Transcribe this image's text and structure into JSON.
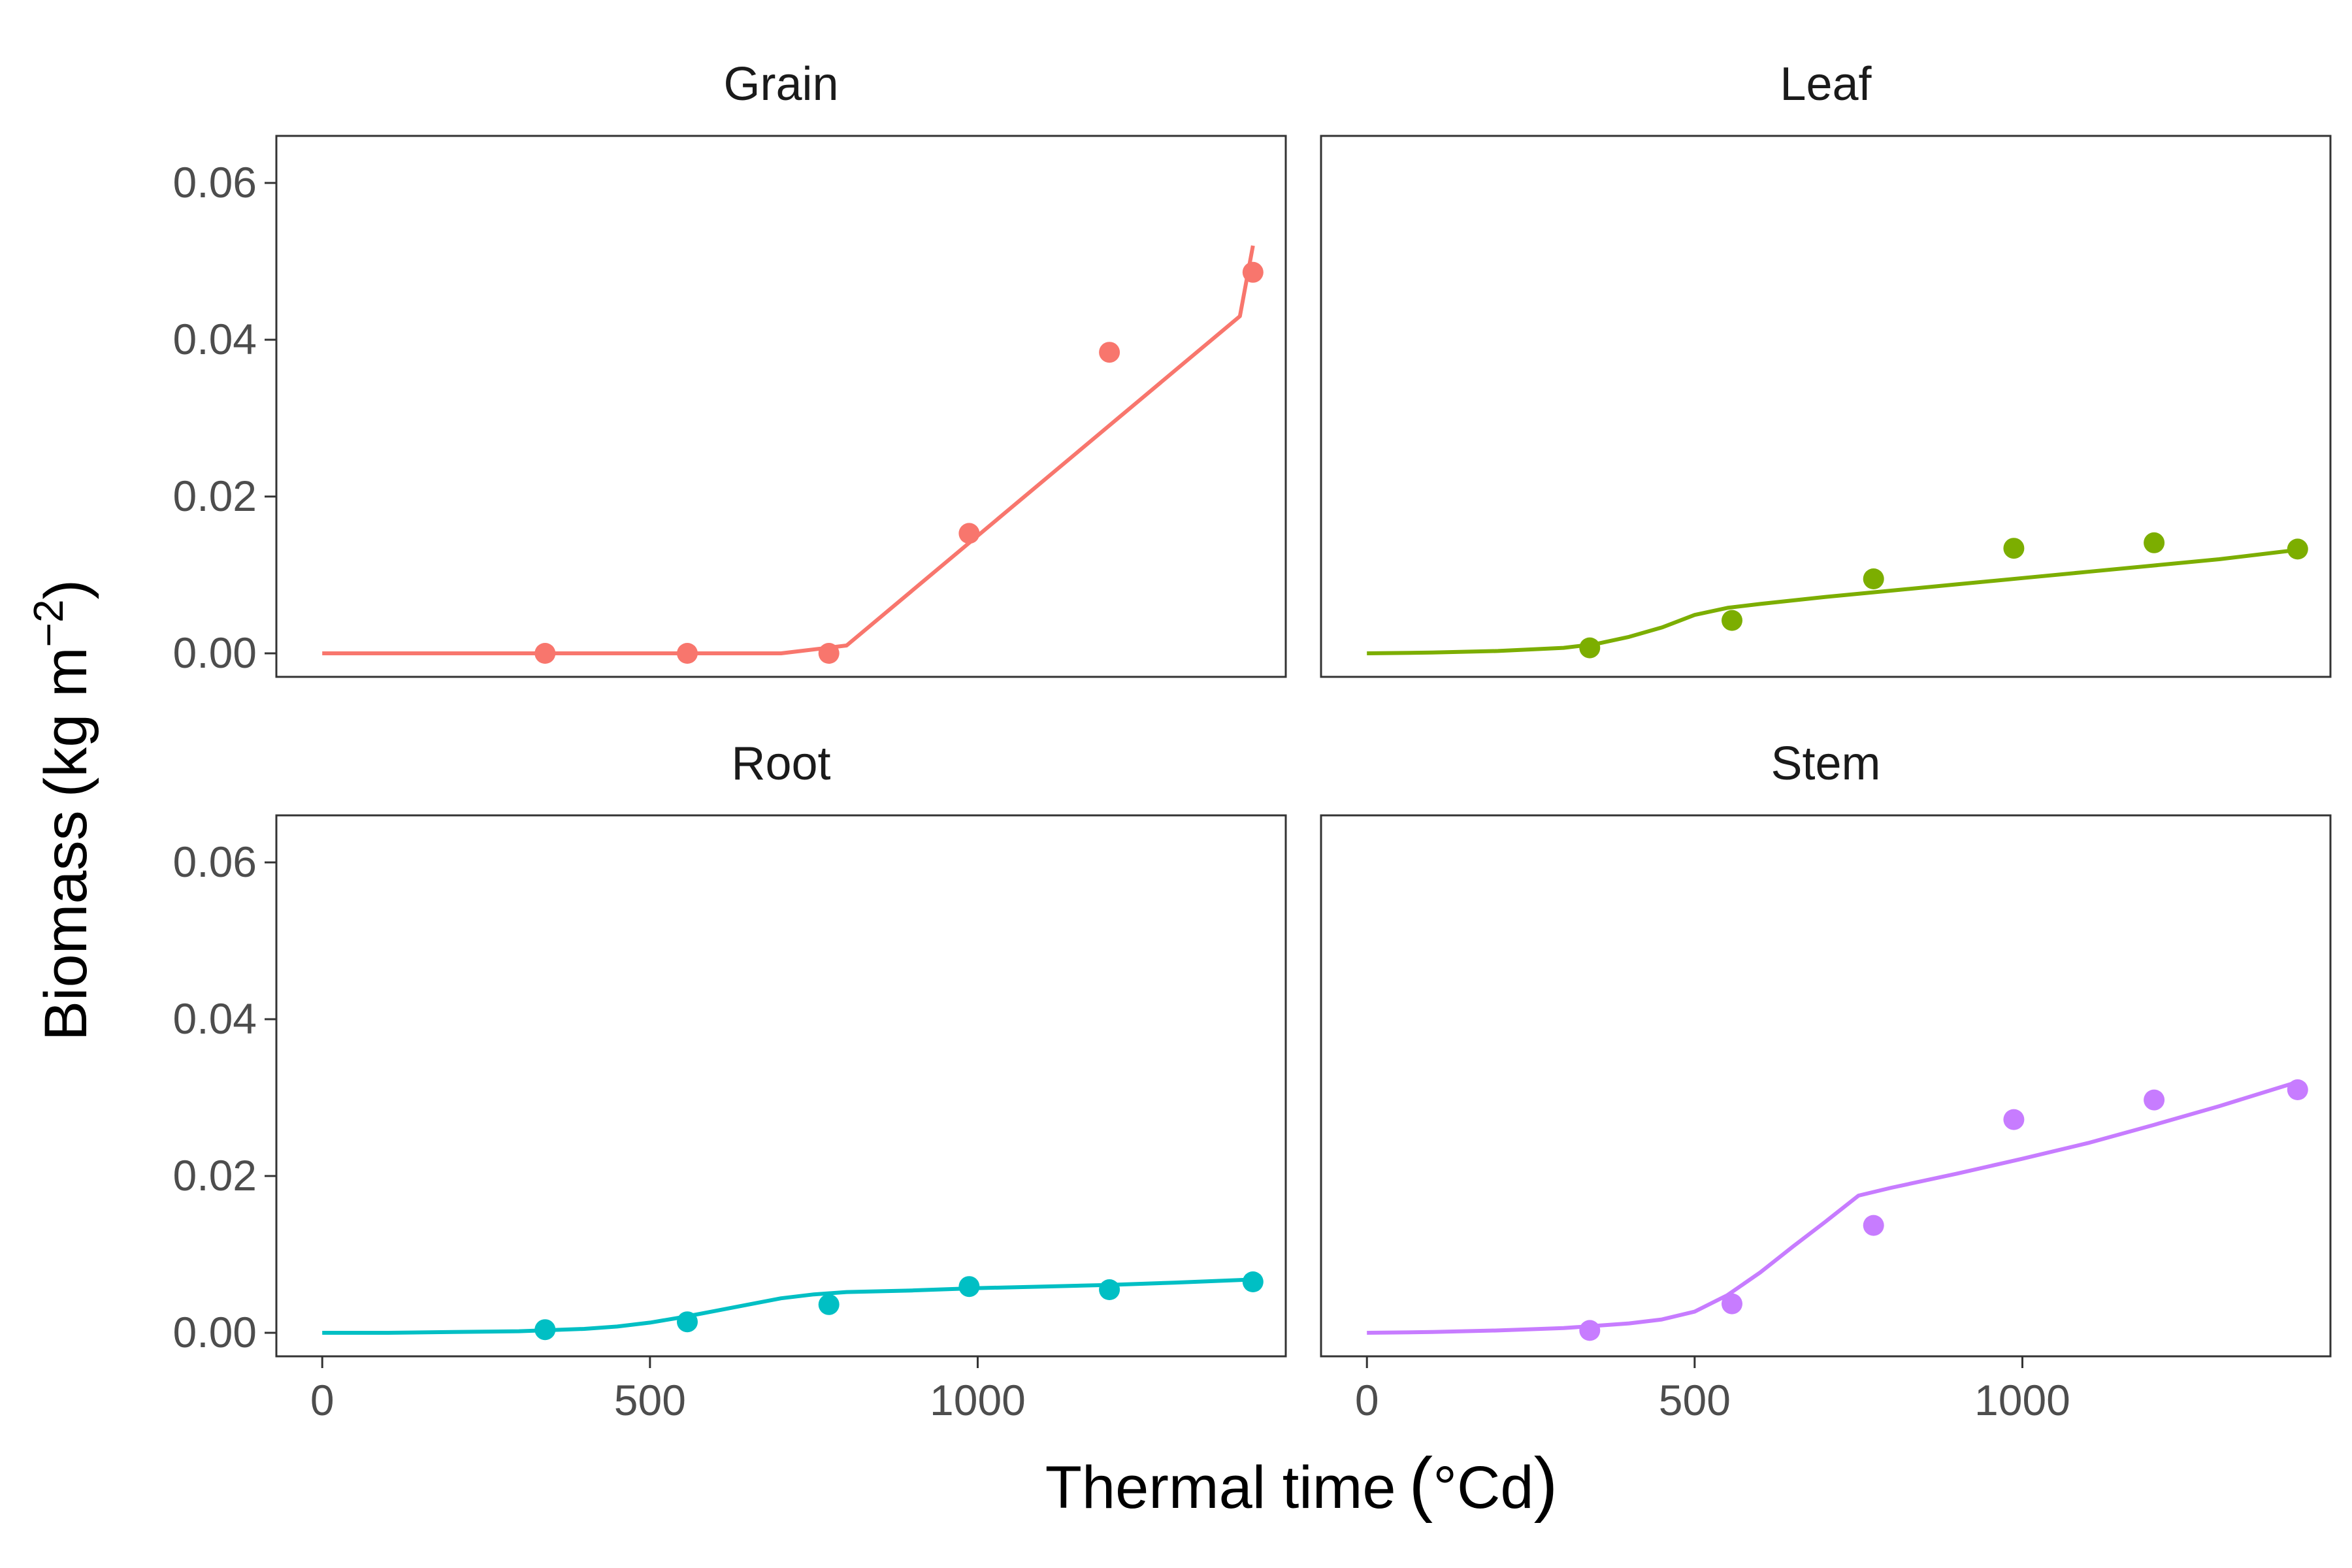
{
  "chart_data": {
    "type": "line",
    "layout": "facet-grid-2x2",
    "xlabel": "Thermal time",
    "xlabel_unit": "°Cd",
    "ylabel": "Biomass",
    "ylabel_unit": "kg m",
    "ylabel_exponent": "−2",
    "xlim": [
      -70,
      1470
    ],
    "ylim": [
      -0.003,
      0.066
    ],
    "x_ticks": [
      0,
      500,
      1000
    ],
    "x_tick_labels": [
      "0",
      "500",
      "1000"
    ],
    "y_ticks": [
      0,
      0.02,
      0.04,
      0.06
    ],
    "y_tick_labels": [
      "0.00",
      "0.02",
      "0.04",
      "0.06"
    ],
    "grid": false,
    "panels": [
      {
        "title": "Grain",
        "color": "#F8766D",
        "observed": {
          "x": [
            340,
            557,
            773,
            987,
            1201,
            1420
          ],
          "y": [
            0.0,
            0.0,
            0.0,
            0.0153,
            0.0384,
            0.0486
          ]
        },
        "simulated": {
          "x": [
            0,
            100,
            200,
            300,
            400,
            500,
            600,
            700,
            800,
            850,
            900,
            950,
            1000,
            1050,
            1100,
            1150,
            1200,
            1250,
            1300,
            1350,
            1400,
            1420
          ],
          "y": [
            0,
            0,
            0,
            0,
            0,
            0,
            0,
            0,
            0.001,
            0.0045,
            0.008,
            0.0115,
            0.015,
            0.0185,
            0.022,
            0.0255,
            0.029,
            0.0325,
            0.036,
            0.0395,
            0.043,
            0.052
          ]
        }
      },
      {
        "title": "Leaf",
        "color": "#7CAE00",
        "observed": {
          "x": [
            340,
            557,
            773,
            987,
            1201,
            1420
          ],
          "y": [
            0.0007,
            0.0042,
            0.0095,
            0.0134,
            0.0141,
            0.0133
          ]
        },
        "simulated": {
          "x": [
            0,
            100,
            200,
            300,
            350,
            400,
            450,
            500,
            550,
            600,
            700,
            800,
            900,
            1000,
            1100,
            1200,
            1300,
            1420
          ],
          "y": [
            0,
            0.0001,
            0.0003,
            0.0007,
            0.0012,
            0.0021,
            0.0033,
            0.0049,
            0.0058,
            0.0063,
            0.0072,
            0.008,
            0.0088,
            0.0096,
            0.0104,
            0.0112,
            0.012,
            0.0132
          ]
        }
      },
      {
        "title": "Root",
        "color": "#00BFC4",
        "observed": {
          "x": [
            340,
            557,
            773,
            987,
            1201,
            1420
          ],
          "y": [
            0.0004,
            0.0014,
            0.0036,
            0.0059,
            0.0055,
            0.0065
          ]
        },
        "simulated": {
          "x": [
            0,
            100,
            200,
            300,
            400,
            450,
            500,
            550,
            600,
            650,
            700,
            750,
            800,
            900,
            1000,
            1100,
            1200,
            1300,
            1420
          ],
          "y": [
            0,
            0,
            0.0001,
            0.0002,
            0.0005,
            0.0008,
            0.0013,
            0.002,
            0.0028,
            0.0036,
            0.0044,
            0.0049,
            0.0052,
            0.0054,
            0.0057,
            0.0059,
            0.0061,
            0.0064,
            0.0068
          ]
        }
      },
      {
        "title": "Stem",
        "color": "#C77CFF",
        "observed": {
          "x": [
            340,
            557,
            773,
            987,
            1201,
            1420
          ],
          "y": [
            0.0003,
            0.0037,
            0.0137,
            0.0272,
            0.0297,
            0.031
          ]
        },
        "simulated": {
          "x": [
            0,
            100,
            200,
            300,
            400,
            450,
            500,
            550,
            600,
            650,
            700,
            750,
            800,
            900,
            1000,
            1100,
            1200,
            1300,
            1420
          ],
          "y": [
            0,
            0.0001,
            0.0003,
            0.0006,
            0.0012,
            0.0017,
            0.0027,
            0.0048,
            0.0077,
            0.011,
            0.0142,
            0.0175,
            0.0185,
            0.0203,
            0.0222,
            0.0242,
            0.0265,
            0.0289,
            0.032
          ]
        }
      }
    ]
  }
}
